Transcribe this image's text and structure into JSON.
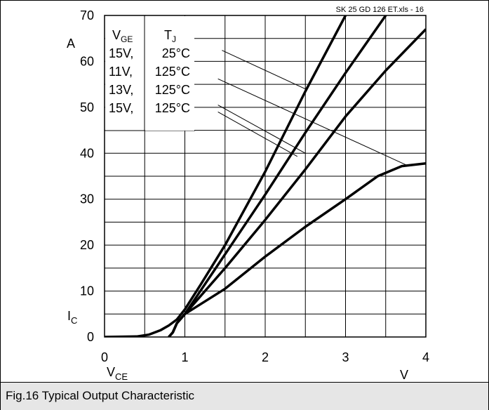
{
  "figure": {
    "caption": "Fig.16 Typical Output Characteristic",
    "file_label": "SK 25 GD 126 ET.xls  - 16"
  },
  "chart_data": {
    "type": "line",
    "title": "",
    "xlabel": "V",
    "xlabel_sub": "CE",
    "x_unit": "V",
    "ylabel": "I",
    "ylabel_sub": "C",
    "y_unit": "A",
    "xlim": [
      0,
      4
    ],
    "ylim": [
      0,
      70
    ],
    "x_ticks": [
      0,
      1,
      2,
      3,
      4
    ],
    "y_ticks": [
      0,
      10,
      20,
      30,
      40,
      50,
      60,
      70
    ],
    "grid": true,
    "minor_grid_x": 0.5,
    "minor_grid_y": 5,
    "legend_header": {
      "v": "V",
      "v_sub": "GE",
      "t": "T",
      "t_sub": "J"
    },
    "series": [
      {
        "name": "15V,  25°C",
        "vge": "15V,",
        "tj": "25°C",
        "points": [
          [
            0,
            0
          ],
          [
            0.4,
            0.1
          ],
          [
            0.55,
            0.5
          ],
          [
            0.7,
            1.5
          ],
          [
            0.8,
            2.5
          ],
          [
            0.9,
            3.8
          ],
          [
            1.0,
            6
          ],
          [
            1.2,
            11.5
          ],
          [
            1.5,
            20
          ],
          [
            2.0,
            36
          ],
          [
            2.5,
            53.5
          ],
          [
            3.0,
            70
          ]
        ]
      },
      {
        "name": "11V,  125°C",
        "vge": "11V,",
        "tj": "125°C",
        "points": [
          [
            0.8,
            0
          ],
          [
            0.85,
            1
          ],
          [
            0.9,
            3
          ],
          [
            1.0,
            5
          ],
          [
            1.5,
            10.5
          ],
          [
            2.0,
            17.5
          ],
          [
            2.5,
            24
          ],
          [
            3.0,
            30
          ],
          [
            3.4,
            35
          ],
          [
            3.7,
            37.2
          ],
          [
            4.0,
            37.8
          ]
        ]
      },
      {
        "name": "13V,  125°C",
        "vge": "13V,",
        "tj": "125°C",
        "points": [
          [
            0.8,
            0
          ],
          [
            0.85,
            1
          ],
          [
            0.9,
            3
          ],
          [
            1.0,
            5
          ],
          [
            1.5,
            18
          ],
          [
            2.0,
            31
          ],
          [
            2.5,
            44.5
          ],
          [
            3.0,
            57.5
          ],
          [
            3.5,
            70
          ],
          [
            3.7,
            75
          ]
        ]
      },
      {
        "name": "15V,  125°C",
        "vge": "15V,",
        "tj": "125°C",
        "points": [
          [
            0.8,
            0
          ],
          [
            0.85,
            1
          ],
          [
            0.9,
            3
          ],
          [
            1.0,
            5
          ],
          [
            1.5,
            15
          ],
          [
            2.0,
            25.5
          ],
          [
            2.5,
            36.5
          ],
          [
            3.0,
            48
          ],
          [
            3.5,
            58
          ],
          [
            4.0,
            67
          ]
        ]
      }
    ],
    "annotations": [
      {
        "series": 0,
        "label_point": [
          1.2,
          62.4
        ],
        "target": [
          2.5,
          54
        ]
      },
      {
        "series": 1,
        "label_point": [
          1.15,
          56.2
        ],
        "target": [
          3.75,
          37.5
        ]
      },
      {
        "series": 2,
        "label_point": [
          1.15,
          50.5
        ],
        "target": [
          2.5,
          40
        ]
      },
      {
        "series": 3,
        "label_point": [
          1.15,
          49
        ],
        "target": [
          2.4,
          39.3
        ]
      }
    ]
  },
  "colors": {
    "line": "#000000",
    "grid": "#000000",
    "caption_bg": "#e6e6e6"
  }
}
